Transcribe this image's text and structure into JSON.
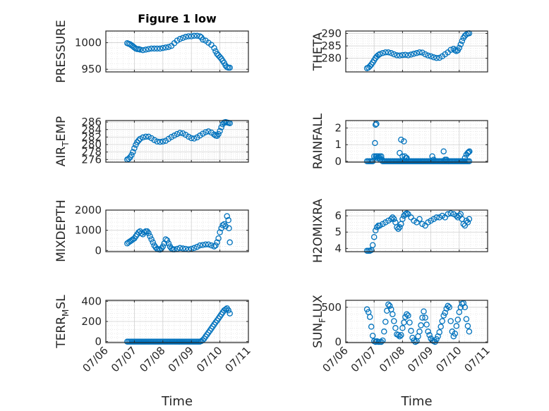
{
  "chart_data": [
    {
      "type": "scatter",
      "title": "Figure 1 low",
      "ylabel": "PRESSURE",
      "xlabel": "",
      "xlim": [
        6,
        11
      ],
      "ylim": [
        945,
        1022
      ],
      "yticks": [
        950,
        1000
      ],
      "xticks": [
        6,
        7,
        8,
        9,
        10,
        11
      ],
      "show_xticklabels": false,
      "x": [
        6.75,
        6.8,
        6.85,
        6.9,
        6.95,
        7.0,
        7.05,
        7.1,
        7.15,
        7.2,
        7.3,
        7.4,
        7.5,
        7.6,
        7.7,
        7.8,
        7.9,
        8.0,
        8.1,
        8.2,
        8.3,
        8.4,
        8.5,
        8.6,
        8.7,
        8.8,
        8.9,
        9.0,
        9.1,
        9.2,
        9.3,
        9.35,
        9.4,
        9.5,
        9.6,
        9.7,
        9.8,
        9.85,
        9.9,
        9.95,
        10.0,
        10.05,
        10.1,
        10.15,
        10.2,
        10.25,
        10.3,
        10.35
      ],
      "y": [
        999,
        998,
        997,
        995,
        993,
        991,
        989,
        988,
        988,
        987,
        986,
        987,
        988,
        989,
        989,
        989,
        989,
        990,
        991,
        992,
        994,
        999,
        1004,
        1007,
        1009,
        1011,
        1012,
        1012,
        1013,
        1013,
        1012,
        1010,
        1006,
        1004,
        1000,
        996,
        990,
        984,
        979,
        976,
        973,
        970,
        966,
        962,
        957,
        954,
        953,
        953
      ]
    },
    {
      "type": "scatter",
      "title": "",
      "ylabel": "THETA",
      "xlabel": "",
      "xlim": [
        6,
        11
      ],
      "ylim": [
        274.5,
        291
      ],
      "yticks": [
        280,
        285,
        290
      ],
      "xticks": [
        6,
        7,
        8,
        9,
        10,
        11
      ],
      "show_xticklabels": false,
      "x": [
        6.75,
        6.8,
        6.85,
        6.9,
        6.95,
        7.0,
        7.05,
        7.1,
        7.15,
        7.2,
        7.3,
        7.4,
        7.5,
        7.6,
        7.7,
        7.8,
        7.9,
        8.0,
        8.1,
        8.2,
        8.3,
        8.4,
        8.5,
        8.6,
        8.7,
        8.8,
        8.9,
        9.0,
        9.1,
        9.2,
        9.3,
        9.4,
        9.5,
        9.6,
        9.7,
        9.8,
        9.85,
        9.9,
        9.95,
        10.0,
        10.05,
        10.1,
        10.15,
        10.2,
        10.25,
        10.3,
        10.35
      ],
      "y": [
        276,
        276.3,
        276.8,
        277.5,
        278.3,
        279.2,
        280.1,
        280.8,
        281.3,
        281.7,
        282.1,
        282.4,
        282.4,
        282.1,
        281.6,
        281.2,
        281.1,
        281.3,
        281.4,
        281.2,
        281.5,
        281.8,
        282.1,
        282.4,
        282.3,
        281.6,
        281.1,
        280.8,
        280.4,
        280.1,
        280.2,
        280.8,
        281.6,
        282.4,
        283.4,
        283.8,
        283.2,
        282.9,
        283.2,
        284.2,
        285.6,
        287.0,
        288.2,
        289.1,
        289.6,
        290.0,
        290.1
      ]
    },
    {
      "type": "scatter",
      "title": "",
      "ylabel": "AIR_TEMP",
      "xlabel": "",
      "xlim": [
        6,
        11
      ],
      "ylim": [
        275.3,
        286.4
      ],
      "yticks": [
        276,
        278,
        280,
        282,
        284,
        286
      ],
      "xticks": [
        6,
        7,
        8,
        9,
        10,
        11
      ],
      "show_xticklabels": false,
      "x": [
        6.75,
        6.8,
        6.85,
        6.9,
        6.95,
        7.0,
        7.05,
        7.1,
        7.15,
        7.2,
        7.3,
        7.4,
        7.5,
        7.6,
        7.7,
        7.8,
        7.9,
        8.0,
        8.1,
        8.2,
        8.3,
        8.4,
        8.5,
        8.6,
        8.7,
        8.8,
        8.9,
        9.0,
        9.1,
        9.2,
        9.3,
        9.4,
        9.5,
        9.6,
        9.7,
        9.8,
        9.85,
        9.9,
        9.95,
        10.0,
        10.05,
        10.1,
        10.15,
        10.2,
        10.25,
        10.3,
        10.35
      ],
      "y": [
        276,
        276.2,
        276.6,
        277.2,
        278,
        279,
        279.9,
        280.6,
        281.1,
        281.5,
        281.9,
        282.1,
        282.1,
        281.7,
        281.2,
        280.8,
        280.7,
        280.8,
        281,
        281.5,
        282,
        282.4,
        282.8,
        283.1,
        283,
        282.6,
        282.1,
        281.7,
        281.6,
        281.9,
        282.4,
        282.9,
        283.3,
        283.5,
        283.2,
        282.7,
        282.4,
        282.3,
        282.8,
        283.6,
        284.6,
        285.4,
        285.9,
        286,
        285.9,
        285.8,
        285.7
      ]
    },
    {
      "type": "scatter",
      "title": "",
      "ylabel": "RAINFALL",
      "xlabel": "",
      "xlim": [
        6,
        11
      ],
      "ylim": [
        -0.05,
        2.45
      ],
      "yticks": [
        0,
        1,
        2
      ],
      "xticks": [
        6,
        7,
        8,
        9,
        10,
        11
      ],
      "show_xticklabels": false,
      "x": [
        6.75,
        6.8,
        6.85,
        6.9,
        6.95,
        7.0,
        7.05,
        7.08,
        7.1,
        7.15,
        7.2,
        7.25,
        7.3,
        7.35,
        7.4,
        7.45,
        7.5,
        7.55,
        7.6,
        7.65,
        7.7,
        7.75,
        7.8,
        7.85,
        7.9,
        7.95,
        8.0,
        8.05,
        8.1,
        8.15,
        8.2,
        8.25,
        8.3,
        8.35,
        8.4,
        8.45,
        8.5,
        8.55,
        8.6,
        8.65,
        8.7,
        8.75,
        8.8,
        8.85,
        8.9,
        8.95,
        9.0,
        9.05,
        9.1,
        9.15,
        9.2,
        9.25,
        9.3,
        9.35,
        9.4,
        9.45,
        9.5,
        9.55,
        9.6,
        9.65,
        9.7,
        9.75,
        9.8,
        9.85,
        9.9,
        9.95,
        10.0,
        10.05,
        10.1,
        10.15,
        10.2,
        10.25,
        10.3,
        10.35,
        7.03,
        7.06,
        7.09,
        7.12,
        7.18,
        7.22,
        7.28,
        7.9,
        7.95,
        8.0,
        8.05,
        8.08,
        8.12,
        8.15,
        9.05,
        9.1,
        9.45,
        9.5,
        9.55,
        10.2,
        10.25,
        10.3,
        10.33,
        10.36
      ],
      "y": [
        0,
        0,
        0,
        0,
        0,
        0.3,
        2.2,
        2.25,
        0.3,
        0.3,
        0.3,
        0.3,
        0,
        0,
        0,
        0,
        0,
        0,
        0,
        0,
        0,
        0,
        0,
        0,
        0,
        0,
        0,
        0,
        0,
        0,
        0,
        0,
        0,
        0,
        0,
        0,
        0,
        0,
        0,
        0,
        0,
        0,
        0,
        0,
        0,
        0,
        0,
        0,
        0,
        0,
        0,
        0,
        0,
        0,
        0,
        0,
        0,
        0,
        0,
        0,
        0,
        0,
        0,
        0,
        0,
        0,
        0,
        0,
        0,
        0,
        0,
        0,
        0,
        0,
        1.1,
        0.3,
        0.3,
        0.2,
        0.2,
        0.1,
        0.1,
        0.5,
        1.3,
        0.3,
        1.2,
        0.3,
        0.2,
        0.2,
        0.3,
        0.1,
        0.6,
        0.1,
        0.1,
        0.2,
        0.4,
        0.5,
        0.55,
        0.6
      ]
    },
    {
      "type": "scatter",
      "title": "",
      "ylabel": "MIXDEPTH",
      "xlabel": "",
      "xlim": [
        6,
        11
      ],
      "ylim": [
        -60,
        2000
      ],
      "yticks": [
        0,
        1000,
        2000
      ],
      "xticks": [
        6,
        7,
        8,
        9,
        10,
        11
      ],
      "show_xticklabels": false,
      "x": [
        6.75,
        6.8,
        6.85,
        6.9,
        6.95,
        7.0,
        7.05,
        7.1,
        7.15,
        7.2,
        7.25,
        7.3,
        7.35,
        7.4,
        7.45,
        7.5,
        7.55,
        7.6,
        7.65,
        7.7,
        7.75,
        7.8,
        7.85,
        7.9,
        7.95,
        8.0,
        8.05,
        8.1,
        8.15,
        8.2,
        8.25,
        8.3,
        8.35,
        8.4,
        8.5,
        8.6,
        8.7,
        8.8,
        8.9,
        9.0,
        9.1,
        9.2,
        9.3,
        9.4,
        9.5,
        9.6,
        9.7,
        9.8,
        9.85,
        9.9,
        9.95,
        10.0,
        10.05,
        10.1,
        10.15,
        10.2,
        10.25,
        10.3,
        10.32,
        10.35
      ],
      "y": [
        350,
        400,
        450,
        500,
        550,
        600,
        700,
        800,
        900,
        950,
        850,
        800,
        900,
        950,
        950,
        850,
        700,
        550,
        400,
        250,
        150,
        80,
        50,
        40,
        100,
        200,
        350,
        550,
        500,
        350,
        200,
        100,
        60,
        50,
        80,
        120,
        100,
        80,
        50,
        80,
        120,
        180,
        250,
        270,
        300,
        300,
        250,
        200,
        250,
        400,
        600,
        900,
        1100,
        1250,
        1300,
        1200,
        1700,
        1500,
        1100,
        400
      ]
    },
    {
      "type": "scatter",
      "title": "",
      "ylabel": "H2OMIXRA",
      "xlabel": "",
      "xlim": [
        6,
        11
      ],
      "ylim": [
        3.8,
        6.35
      ],
      "yticks": [
        4,
        5,
        6
      ],
      "xticks": [
        6,
        7,
        8,
        9,
        10,
        11
      ],
      "show_xticklabels": false,
      "x": [
        6.75,
        6.8,
        6.85,
        6.9,
        6.95,
        7.0,
        7.05,
        7.1,
        7.15,
        7.2,
        7.3,
        7.4,
        7.5,
        7.6,
        7.65,
        7.7,
        7.75,
        7.8,
        7.85,
        7.9,
        7.95,
        8.0,
        8.05,
        8.1,
        8.15,
        8.2,
        8.3,
        8.4,
        8.5,
        8.6,
        8.7,
        8.8,
        8.9,
        9.0,
        9.1,
        9.2,
        9.3,
        9.4,
        9.5,
        9.6,
        9.7,
        9.8,
        9.9,
        9.95,
        10.0,
        10.05,
        10.1,
        10.15,
        10.2,
        10.25,
        10.3,
        10.35
      ],
      "y": [
        3.85,
        3.85,
        3.85,
        3.9,
        4.2,
        4.7,
        5.1,
        5.3,
        5.4,
        5.4,
        5.5,
        5.6,
        5.7,
        5.8,
        5.9,
        5.8,
        5.6,
        5.3,
        5.2,
        5.3,
        5.5,
        5.8,
        6.0,
        6.1,
        6.15,
        6.1,
        5.9,
        5.7,
        5.6,
        5.8,
        5.5,
        5.4,
        5.6,
        5.7,
        5.8,
        5.9,
        5.9,
        6.0,
        5.9,
        6.1,
        6.15,
        6.1,
        6.0,
        5.9,
        6.0,
        6.1,
        5.8,
        5.5,
        5.4,
        5.7,
        5.6,
        5.8
      ]
    },
    {
      "type": "scatter",
      "title": "",
      "ylabel": "TERR_MSL",
      "xlabel": "Time",
      "xlim": [
        6,
        11
      ],
      "ylim": [
        -10,
        410
      ],
      "yticks": [
        0,
        200,
        400
      ],
      "xticks": [
        6,
        7,
        8,
        9,
        10,
        11
      ],
      "xticklabels": [
        "07/06",
        "07/07",
        "07/08",
        "07/09",
        "07/10",
        "07/11"
      ],
      "show_xticklabels": true,
      "x": [
        6.75,
        6.8,
        6.85,
        6.9,
        6.95,
        7.0,
        7.05,
        7.1,
        7.15,
        7.2,
        7.25,
        7.3,
        7.35,
        7.4,
        7.45,
        7.5,
        7.55,
        7.6,
        7.65,
        7.7,
        7.75,
        7.8,
        7.85,
        7.9,
        7.95,
        8.0,
        8.05,
        8.1,
        8.15,
        8.2,
        8.25,
        8.3,
        8.35,
        8.4,
        8.45,
        8.5,
        8.55,
        8.6,
        8.65,
        8.7,
        8.75,
        8.8,
        8.85,
        8.9,
        8.95,
        9.0,
        9.05,
        9.1,
        9.15,
        9.2,
        9.25,
        9.3,
        9.35,
        9.4,
        9.45,
        9.5,
        9.55,
        9.6,
        9.65,
        9.7,
        9.75,
        9.8,
        9.85,
        9.9,
        9.95,
        10.0,
        10.05,
        10.1,
        10.15,
        10.2,
        10.25,
        10.3,
        10.35
      ],
      "y": [
        0,
        0,
        0,
        0,
        0,
        0,
        0,
        0,
        0,
        0,
        0,
        0,
        0,
        0,
        0,
        0,
        0,
        0,
        0,
        0,
        0,
        0,
        0,
        0,
        0,
        0,
        0,
        0,
        0,
        0,
        0,
        0,
        0,
        0,
        0,
        0,
        0,
        0,
        0,
        0,
        0,
        0,
        0,
        0,
        0,
        0,
        0,
        0,
        0,
        0,
        0,
        0,
        5,
        15,
        30,
        50,
        70,
        90,
        110,
        130,
        150,
        170,
        190,
        210,
        230,
        250,
        270,
        290,
        310,
        320,
        330,
        310,
        280
      ]
    },
    {
      "type": "scatter",
      "title": "",
      "ylabel": "SUN_FLUX",
      "xlabel": "Time",
      "xlim": [
        6,
        11
      ],
      "ylim": [
        -10,
        600
      ],
      "yticks": [
        0,
        500
      ],
      "xticks": [
        6,
        7,
        8,
        9,
        10,
        11
      ],
      "xticklabels": [
        "07/06",
        "07/07",
        "07/08",
        "07/09",
        "07/10",
        "07/11"
      ],
      "show_xticklabels": true,
      "x": [
        6.75,
        6.8,
        6.85,
        6.9,
        6.95,
        7.0,
        7.05,
        7.1,
        7.15,
        7.2,
        7.25,
        7.3,
        7.35,
        7.4,
        7.45,
        7.5,
        7.55,
        7.6,
        7.65,
        7.7,
        7.75,
        7.8,
        7.85,
        7.9,
        7.95,
        8.0,
        8.05,
        8.1,
        8.15,
        8.2,
        8.25,
        8.3,
        8.35,
        8.4,
        8.45,
        8.5,
        8.55,
        8.6,
        8.65,
        8.7,
        8.75,
        8.8,
        8.85,
        8.9,
        8.95,
        9.0,
        9.05,
        9.1,
        9.15,
        9.2,
        9.25,
        9.3,
        9.35,
        9.4,
        9.45,
        9.5,
        9.55,
        9.6,
        9.65,
        9.7,
        9.75,
        9.8,
        9.85,
        9.9,
        9.95,
        10.0,
        10.05,
        10.1,
        10.15,
        10.2,
        10.25,
        10.3,
        10.35
      ],
      "y": [
        470,
        430,
        360,
        220,
        90,
        10,
        0,
        10,
        0,
        0,
        0,
        20,
        150,
        290,
        450,
        540,
        520,
        470,
        400,
        300,
        200,
        110,
        100,
        80,
        100,
        200,
        280,
        360,
        400,
        380,
        280,
        160,
        60,
        20,
        0,
        10,
        80,
        150,
        240,
        350,
        440,
        350,
        250,
        150,
        100,
        50,
        20,
        10,
        0,
        40,
        80,
        140,
        220,
        300,
        380,
        420,
        480,
        520,
        500,
        300,
        150,
        80,
        120,
        230,
        320,
        430,
        500,
        550,
        560,
        500,
        330,
        230,
        150
      ]
    }
  ]
}
